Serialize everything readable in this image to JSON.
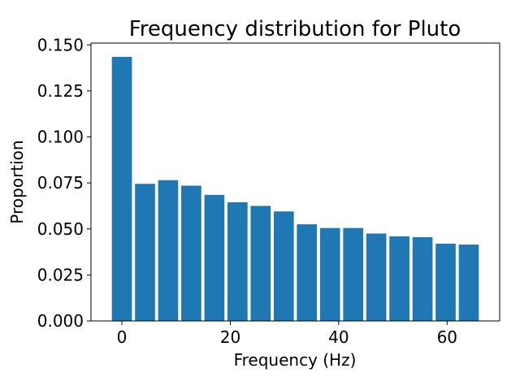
{
  "chart_data": {
    "type": "bar",
    "title": "Frequency distribution for Pluto",
    "xlabel": "Frequency (Hz)",
    "ylabel": "Proportion",
    "x": [
      0,
      4.27,
      8.53,
      12.8,
      17.07,
      21.33,
      25.6,
      29.87,
      34.13,
      38.4,
      42.67,
      46.93,
      51.2,
      55.47,
      59.73,
      64.0
    ],
    "values": [
      0.1435,
      0.0745,
      0.0765,
      0.0735,
      0.0685,
      0.0645,
      0.0625,
      0.0595,
      0.0525,
      0.0505,
      0.0505,
      0.0475,
      0.046,
      0.0455,
      0.042,
      0.0415
    ],
    "bar_width": 3.7,
    "xlim": [
      -5.7,
      69.7
    ],
    "ylim": [
      0,
      0.151
    ],
    "xticks": [
      0,
      20,
      40,
      60
    ],
    "xtick_labels": [
      "0",
      "20",
      "40",
      "60"
    ],
    "yticks": [
      0,
      0.025,
      0.05,
      0.075,
      0.1,
      0.125,
      0.15
    ],
    "ytick_labels": [
      "0.000",
      "0.025",
      "0.050",
      "0.075",
      "0.100",
      "0.125",
      "0.150"
    ],
    "grid": false,
    "bar_color": "#1f77b4"
  }
}
